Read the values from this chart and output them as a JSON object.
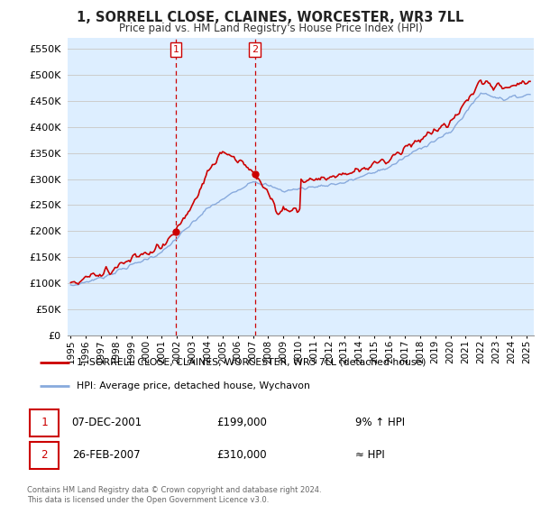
{
  "title": "1, SORRELL CLOSE, CLAINES, WORCESTER, WR3 7LL",
  "subtitle": "Price paid vs. HM Land Registry's House Price Index (HPI)",
  "ylabel_ticks": [
    "£0",
    "£50K",
    "£100K",
    "£150K",
    "£200K",
    "£250K",
    "£300K",
    "£350K",
    "£400K",
    "£450K",
    "£500K",
    "£550K"
  ],
  "ytick_values": [
    0,
    50000,
    100000,
    150000,
    200000,
    250000,
    300000,
    350000,
    400000,
    450000,
    500000,
    550000
  ],
  "ylim": [
    0,
    570000
  ],
  "xlim_start": 1994.8,
  "xlim_end": 2025.5,
  "xtick_years": [
    1995,
    1996,
    1997,
    1998,
    1999,
    2000,
    2001,
    2002,
    2003,
    2004,
    2005,
    2006,
    2007,
    2008,
    2009,
    2010,
    2011,
    2012,
    2013,
    2014,
    2015,
    2016,
    2017,
    2018,
    2019,
    2020,
    2021,
    2022,
    2023,
    2024,
    2025
  ],
  "sale1_x": 2001.92,
  "sale1_y": 199000,
  "sale2_x": 2007.13,
  "sale2_y": 310000,
  "legend_line1": "1, SORRELL CLOSE, CLAINES, WORCESTER, WR3 7LL (detached house)",
  "legend_line2": "HPI: Average price, detached house, Wychavon",
  "annotation1_date": "07-DEC-2001",
  "annotation1_price": "£199,000",
  "annotation1_hpi": "9% ↑ HPI",
  "annotation2_date": "26-FEB-2007",
  "annotation2_price": "£310,000",
  "annotation2_hpi": "≈ HPI",
  "footer1": "Contains HM Land Registry data © Crown copyright and database right 2024.",
  "footer2": "This data is licensed under the Open Government Licence v3.0.",
  "line_color_red": "#cc0000",
  "line_color_blue": "#88aadd",
  "shaded_color": "#ddeeff",
  "background_color": "#ffffff",
  "grid_color": "#cccccc"
}
